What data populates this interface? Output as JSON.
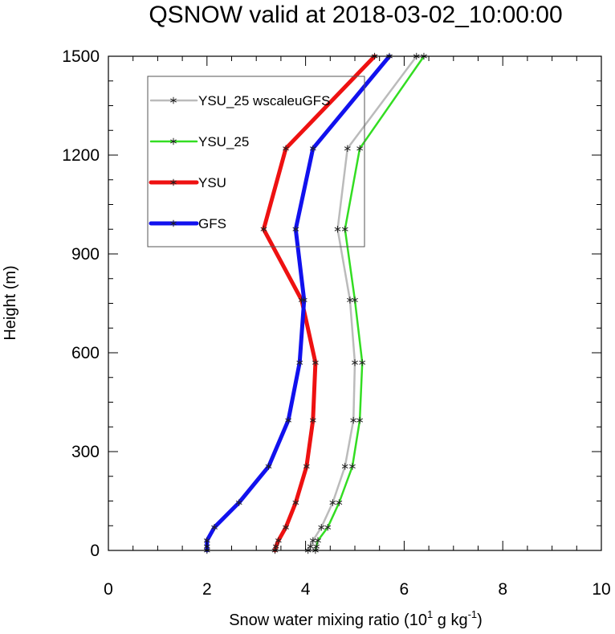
{
  "chart_data": {
    "type": "line",
    "title": "QSNOW valid at 2018-03-02_10:00:00",
    "xlabel": "Snow water mixing ratio (10",
    "xlabel_exp1": "1",
    "xlabel_mid": " g kg",
    "xlabel_exp2": "-1",
    "xlabel_end": ")",
    "ylabel": "Height (m)",
    "xlim": [
      0,
      10
    ],
    "ylim": [
      0,
      1500
    ],
    "xticks": [
      0,
      2,
      4,
      6,
      8,
      10
    ],
    "xtick_labels": [
      "0",
      "2",
      "4",
      "6",
      "8",
      "10"
    ],
    "yticks": [
      0,
      300,
      600,
      900,
      1200,
      1500
    ],
    "ytick_labels": [
      "0",
      "300",
      "600",
      "900",
      "1200",
      "1500"
    ],
    "legend_position": "top-left",
    "grid": false,
    "series": [
      {
        "name": "YSU_25 wscaleuGFS",
        "color": "#bbbbbb",
        "line_width": "thin",
        "marker": "asterisk",
        "points": [
          [
            4.05,
            0
          ],
          [
            4.1,
            12
          ],
          [
            4.15,
            30
          ],
          [
            4.32,
            70
          ],
          [
            4.55,
            145
          ],
          [
            4.8,
            255
          ],
          [
            4.97,
            395
          ],
          [
            5.0,
            570
          ],
          [
            4.9,
            760
          ],
          [
            4.65,
            975
          ],
          [
            4.85,
            1220
          ],
          [
            6.25,
            1500
          ]
        ]
      },
      {
        "name": "YSU_25",
        "color": "#33dd22",
        "line_width": "thin",
        "marker": "asterisk",
        "points": [
          [
            4.2,
            0
          ],
          [
            4.22,
            12
          ],
          [
            4.25,
            30
          ],
          [
            4.45,
            70
          ],
          [
            4.68,
            145
          ],
          [
            4.95,
            255
          ],
          [
            5.1,
            395
          ],
          [
            5.15,
            570
          ],
          [
            5.0,
            760
          ],
          [
            4.8,
            975
          ],
          [
            5.1,
            1220
          ],
          [
            6.4,
            1500
          ]
        ]
      },
      {
        "name": "YSU",
        "color": "#ee1111",
        "line_width": "thick",
        "marker": "asterisk",
        "points": [
          [
            3.38,
            0
          ],
          [
            3.4,
            12
          ],
          [
            3.45,
            30
          ],
          [
            3.6,
            70
          ],
          [
            3.8,
            145
          ],
          [
            4.02,
            255
          ],
          [
            4.15,
            395
          ],
          [
            4.2,
            570
          ],
          [
            3.92,
            760
          ],
          [
            3.15,
            975
          ],
          [
            3.6,
            1220
          ],
          [
            5.4,
            1500
          ]
        ]
      },
      {
        "name": "GFS",
        "color": "#1111ee",
        "line_width": "thick",
        "marker": "asterisk",
        "points": [
          [
            2.0,
            0
          ],
          [
            2.0,
            12
          ],
          [
            2.0,
            30
          ],
          [
            2.15,
            70
          ],
          [
            2.65,
            145
          ],
          [
            3.25,
            255
          ],
          [
            3.65,
            395
          ],
          [
            3.88,
            570
          ],
          [
            3.97,
            760
          ],
          [
            3.8,
            975
          ],
          [
            4.15,
            1220
          ],
          [
            5.7,
            1500
          ]
        ]
      }
    ]
  }
}
